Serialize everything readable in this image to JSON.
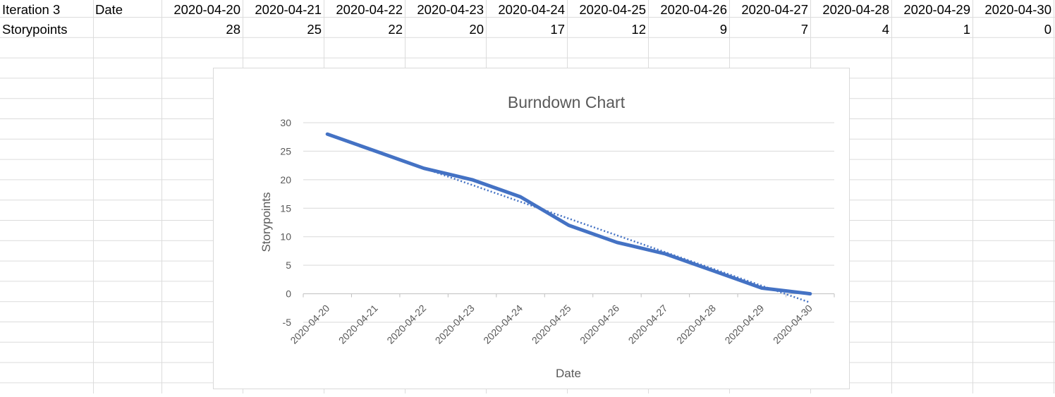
{
  "sheet": {
    "row1": {
      "label": "Iteration 3",
      "header": "Date",
      "dates": [
        "2020-04-20",
        "2020-04-21",
        "2020-04-22",
        "2020-04-23",
        "2020-04-24",
        "2020-04-25",
        "2020-04-26",
        "2020-04-27",
        "2020-04-28",
        "2020-04-29",
        "2020-04-30"
      ]
    },
    "row2": {
      "label": "Storypoints",
      "values": [
        "28",
        "25",
        "22",
        "20",
        "17",
        "12",
        "9",
        "7",
        "4",
        "1",
        "0"
      ]
    }
  },
  "chart_data": {
    "type": "line",
    "title": "Burndown Chart",
    "xlabel": "Date",
    "ylabel": "Storypoints",
    "categories": [
      "2020-04-20",
      "2020-04-21",
      "2020-04-22",
      "2020-04-23",
      "2020-04-24",
      "2020-04-25",
      "2020-04-26",
      "2020-04-27",
      "2020-04-28",
      "2020-04-29",
      "2020-04-30"
    ],
    "series": [
      {
        "values": [
          28,
          25,
          22,
          20,
          17,
          12,
          9,
          7,
          4,
          1,
          0
        ],
        "color": "#4472C4",
        "style": "solid"
      }
    ],
    "trendline": {
      "type": "linear",
      "style": "dotted",
      "color": "#4472C4"
    },
    "ylim": [
      -5,
      30
    ],
    "yticks": [
      -5,
      0,
      5,
      10,
      15,
      20,
      25,
      30
    ],
    "grid": true,
    "legend": "none"
  }
}
